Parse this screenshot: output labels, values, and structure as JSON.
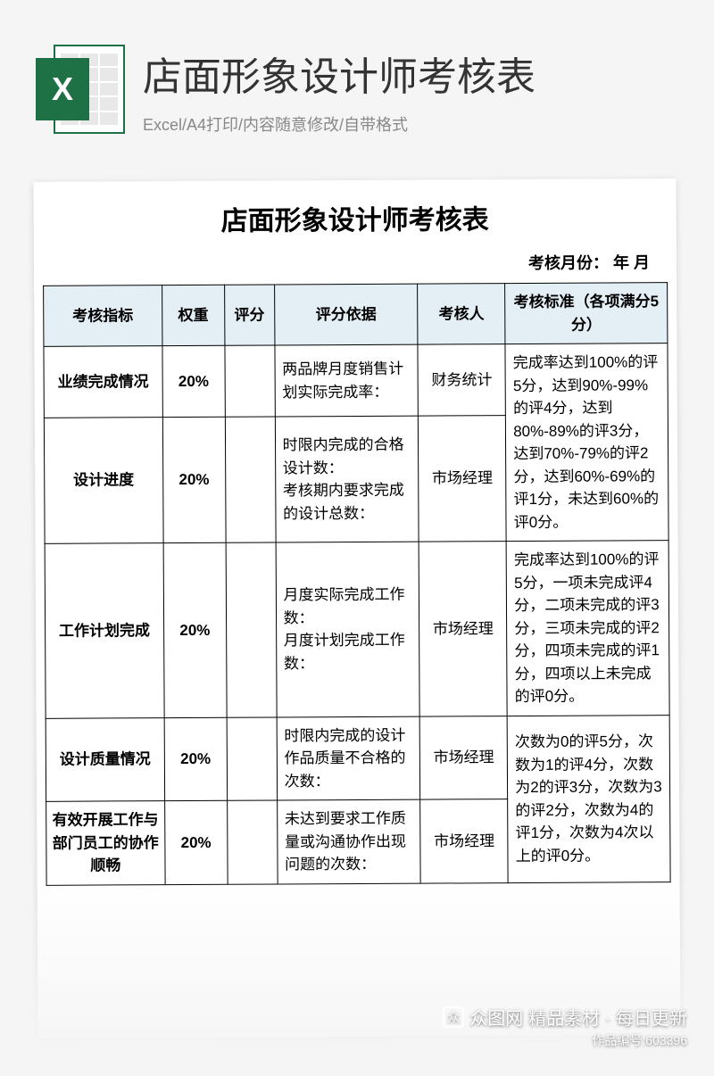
{
  "header": {
    "title": "店面形象设计师考核表",
    "subtitle": "Excel/A4打印/内容随意修改/自带格式",
    "icon_letter": "X"
  },
  "document": {
    "title": "店面形象设计师考核表",
    "month_label": "考核月份：  年  月",
    "columns": {
      "indicator": "考核指标",
      "weight": "权重",
      "score": "评分",
      "basis": "评分依据",
      "assessor": "考核人",
      "standard": "考核标准（各项满分5分）"
    },
    "rows": [
      {
        "indicator": "业绩完成情况",
        "weight": "20%",
        "score": "",
        "basis": "两品牌月度销售计划实际完成率：",
        "assessor": "财务统计",
        "standard": "完成率达到100%的评5分，达到90%-99%的评4分，达到80%-89%的评3分，达到70%-79%的评2分，达到60%-69%的评1分，未达到60%的评0分。",
        "standard_rowspan": 2
      },
      {
        "indicator": "设计进度",
        "weight": "20%",
        "score": "",
        "basis": "时限内完成的合格设计数：\n考核期内要求完成的设计总数：",
        "assessor": "市场经理"
      },
      {
        "indicator": "工作计划完成",
        "weight": "20%",
        "score": "",
        "basis": "月度实际完成工作数：\n月度计划完成工作数：",
        "assessor": "市场经理",
        "standard": "完成率达到100%的评5分，一项未完成评4分，二项未完成的评3分，三项未完成的评2分，四项未完成的评1分，四项以上未完成的评0分。",
        "standard_rowspan": 1
      },
      {
        "indicator": "设计质量情况",
        "weight": "20%",
        "score": "",
        "basis": "时限内完成的设计作品质量不合格的次数：",
        "assessor": "市场经理",
        "standard": "次数为0的评5分，次数为1的评4分，次数为2的评3分，次数为3的评2分，次数为4的评1分，次数为4次以上的评0分。",
        "standard_rowspan": 2
      },
      {
        "indicator": "有效开展工作与部门员工的协作顺畅",
        "weight": "20%",
        "score": "",
        "basis": "未达到要求工作质量或沟通协作出现问题的次数：",
        "assessor": "市场经理"
      }
    ]
  },
  "watermark": {
    "brand": "众图网",
    "tagline": "精品素材 · 每日更新",
    "id": "作品编号:603396"
  },
  "colors": {
    "excel_green": "#1e7145",
    "header_bg": "#e4eef5",
    "page_bg": "#f5f5f5",
    "border": "#000000",
    "subtitle": "#888888"
  }
}
